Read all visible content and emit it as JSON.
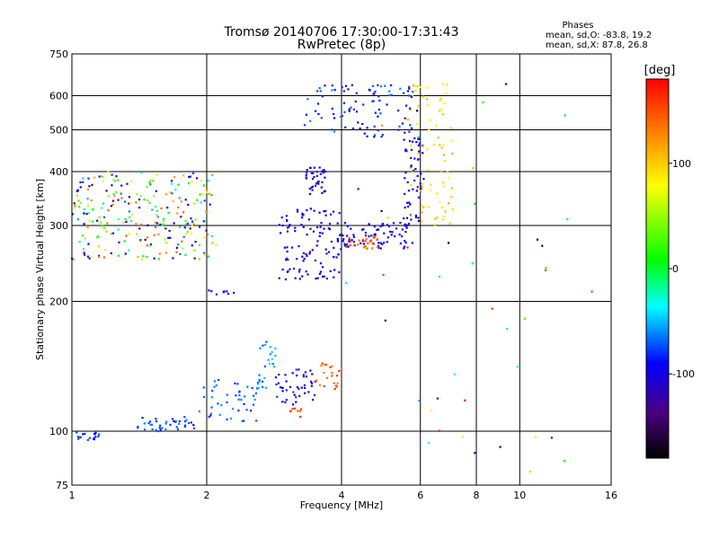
{
  "header": {
    "title": "Tromsø 20140706 17:30:00-17:31:43",
    "subtitle": "RwPretec (8p)",
    "phase_title": "Phases",
    "phase_o": "mean, sd,O: -83.8, 19.2",
    "phase_x": "mean, sd,X: 87.8, 26.8"
  },
  "colorbar": {
    "label": "[deg]",
    "ticks": [
      "100",
      "0",
      "-100"
    ],
    "tick_values": [
      100,
      0,
      -100
    ],
    "range": [
      -180,
      180
    ]
  },
  "chart_data": {
    "type": "scatter",
    "x_scale": "log",
    "y_scale": "log",
    "xlabel": "Frequency [MHz]",
    "ylabel": "Stationary phase Virtual Height [km]",
    "xlim": [
      1,
      16
    ],
    "ylim": [
      75,
      750
    ],
    "xticks": [
      1,
      2,
      4,
      6,
      8,
      10,
      16
    ],
    "xtick_labels": [
      "1",
      "2",
      "4",
      "6",
      "8",
      "10",
      "16"
    ],
    "yticks": [
      75,
      100,
      200,
      300,
      400,
      500,
      600,
      750
    ],
    "ytick_labels": [
      "75",
      "100",
      "200",
      "300",
      "400",
      "500",
      "600",
      "750"
    ],
    "grid": true,
    "color_encoding": "phase_deg",
    "series": [
      {
        "x_range": [
          1.0,
          1.15
        ],
        "y_range": [
          95,
          100
        ],
        "phase_range": [
          -90,
          -70
        ],
        "density": 18
      },
      {
        "x_range": [
          1.4,
          1.9
        ],
        "y_range": [
          100,
          108
        ],
        "phase_range": [
          -90,
          -60
        ],
        "density": 40
      },
      {
        "x_range": [
          1.9,
          2.6
        ],
        "y_range": [
          105,
          132
        ],
        "phase_range": [
          -85,
          -55
        ],
        "density": 45
      },
      {
        "x_range": [
          2.6,
          2.85
        ],
        "y_range": [
          125,
          165
        ],
        "phase_range": [
          -75,
          -40
        ],
        "density": 25
      },
      {
        "x_range": [
          2.85,
          3.2
        ],
        "y_range": [
          115,
          140
        ],
        "phase_range": [
          -110,
          -75
        ],
        "density": 25
      },
      {
        "x_range": [
          3.2,
          3.5
        ],
        "y_range": [
          118,
          140
        ],
        "phase_range": [
          -115,
          -80
        ],
        "density": 20
      },
      {
        "x_range": [
          3.5,
          4.0
        ],
        "y_range": [
          125,
          145
        ],
        "phase_range": [
          120,
          170
        ],
        "density": 22
      },
      {
        "x_range": [
          3.05,
          3.25
        ],
        "y_range": [
          108,
          113
        ],
        "phase_range": [
          130,
          165
        ],
        "density": 8
      },
      {
        "x_range": [
          1.0,
          2.1
        ],
        "y_range": [
          250,
          400
        ],
        "phase_range": [
          -150,
          150
        ],
        "density": 260
      },
      {
        "x_range": [
          1.95,
          2.3
        ],
        "y_range": [
          205,
          213
        ],
        "phase_range": [
          -110,
          -80
        ],
        "density": 8
      },
      {
        "x_range": [
          2.9,
          4.0
        ],
        "y_range": [
          225,
          330
        ],
        "phase_range": [
          -120,
          -85
        ],
        "density": 110
      },
      {
        "x_range": [
          4.0,
          5.8
        ],
        "y_range": [
          265,
          305
        ],
        "phase_range": [
          -115,
          -85
        ],
        "density": 70
      },
      {
        "x_range": [
          4.1,
          4.9
        ],
        "y_range": [
          265,
          285
        ],
        "phase_range": [
          130,
          170
        ],
        "density": 25
      },
      {
        "x_range": [
          5.5,
          6.1
        ],
        "y_range": [
          300,
          480
        ],
        "phase_range": [
          -115,
          -85
        ],
        "density": 55
      },
      {
        "x_range": [
          5.6,
          7.1
        ],
        "y_range": [
          300,
          650
        ],
        "phase_range": [
          70,
          110
        ],
        "density": 80
      },
      {
        "x_range": [
          3.3,
          3.7
        ],
        "y_range": [
          350,
          410
        ],
        "phase_range": [
          -120,
          -85
        ],
        "density": 40
      },
      {
        "x_range": [
          3.3,
          5.8
        ],
        "y_range": [
          480,
          640
        ],
        "phase_range": [
          -110,
          -60
        ],
        "density": 95
      },
      {
        "x_range": [
          4.0,
          15.0
        ],
        "y_range": [
          80,
          650
        ],
        "phase_range": [
          -180,
          180
        ],
        "density": 45
      }
    ]
  }
}
